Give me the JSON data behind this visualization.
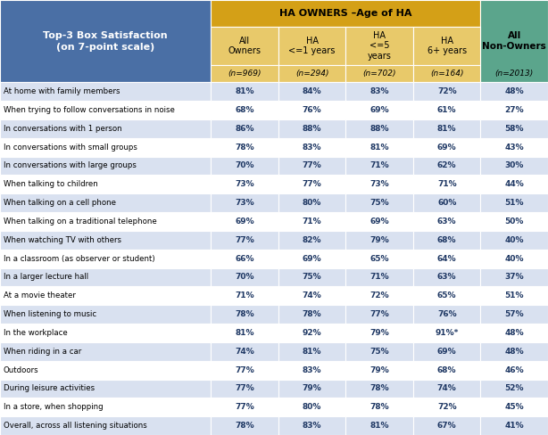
{
  "header_title": "HA OWNERS –Age of HA",
  "col_subheaders": [
    "(n=969)",
    "(n=294)",
    "(n=702)",
    "(n=164)",
    "(n=2013)"
  ],
  "row_labels": [
    "At home with family members",
    "When trying to follow conversations in noise",
    "In conversations with 1 person",
    "In conversations with small groups",
    "In conversations with large groups",
    "When talking to children",
    "When talking on a cell phone",
    "When talking on a traditional telephone",
    "When watching TV with others",
    "In a classroom (as observer or student)",
    "In a larger lecture hall",
    "At a movie theater",
    "When listening to music",
    "In the workplace",
    "When riding in a car",
    "Outdoors",
    "During leisure activities",
    "In a store, when shopping",
    "Overall, across all listening situations"
  ],
  "data": [
    [
      "81%",
      "84%",
      "83%",
      "72%",
      "48%"
    ],
    [
      "68%",
      "76%",
      "69%",
      "61%",
      "27%"
    ],
    [
      "86%",
      "88%",
      "88%",
      "81%",
      "58%"
    ],
    [
      "78%",
      "83%",
      "81%",
      "69%",
      "43%"
    ],
    [
      "70%",
      "77%",
      "71%",
      "62%",
      "30%"
    ],
    [
      "73%",
      "77%",
      "73%",
      "71%",
      "44%"
    ],
    [
      "73%",
      "80%",
      "75%",
      "60%",
      "51%"
    ],
    [
      "69%",
      "71%",
      "69%",
      "63%",
      "50%"
    ],
    [
      "77%",
      "82%",
      "79%",
      "68%",
      "40%"
    ],
    [
      "66%",
      "69%",
      "65%",
      "64%",
      "40%"
    ],
    [
      "70%",
      "75%",
      "71%",
      "63%",
      "37%"
    ],
    [
      "71%",
      "74%",
      "72%",
      "65%",
      "51%"
    ],
    [
      "78%",
      "78%",
      "77%",
      "76%",
      "57%"
    ],
    [
      "81%",
      "92%",
      "79%",
      "91%*",
      "48%"
    ],
    [
      "74%",
      "81%",
      "75%",
      "69%",
      "48%"
    ],
    [
      "77%",
      "83%",
      "79%",
      "68%",
      "46%"
    ],
    [
      "77%",
      "79%",
      "78%",
      "74%",
      "52%"
    ],
    [
      "77%",
      "80%",
      "78%",
      "72%",
      "45%"
    ],
    [
      "78%",
      "83%",
      "81%",
      "67%",
      "41%"
    ]
  ],
  "left_header_line1": "Top-3 Box Satisfaction",
  "left_header_line2": "(on 7-point scale)",
  "color_header_owners": "#D4A017",
  "color_header_nonowners": "#5BA58C",
  "color_left_header": "#4A6FA5",
  "color_col_header_owners_bg": "#E8C96A",
  "color_row_even": "#D9E1F0",
  "color_row_odd": "#FFFFFF",
  "color_data_text": "#1F3864"
}
